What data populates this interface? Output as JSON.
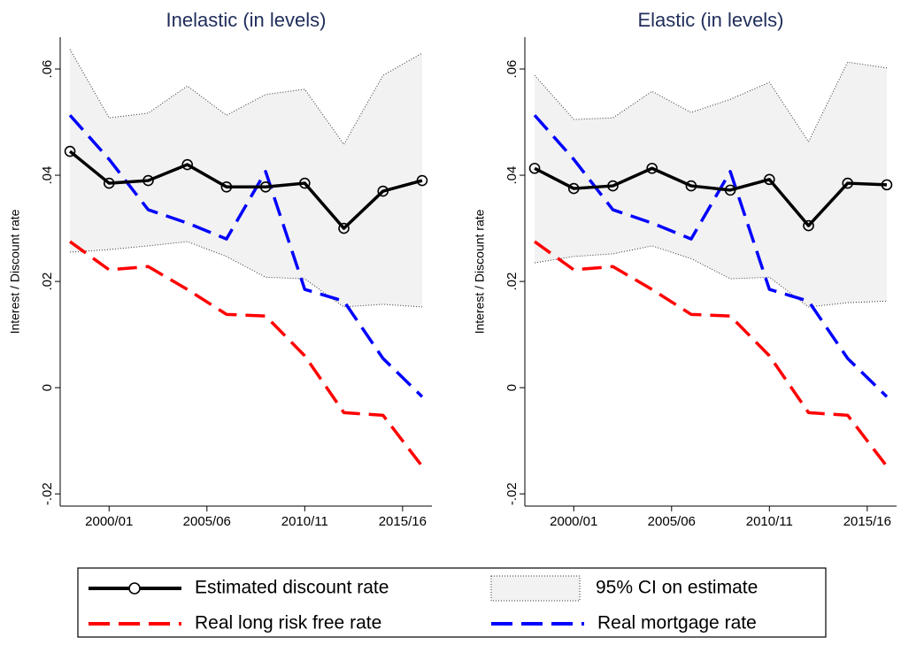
{
  "chart_data": [
    {
      "type": "line",
      "title": "Inelastic (in levels)",
      "y_label": "Interest / Discount rate",
      "x": [
        1998,
        2000,
        2002,
        2004,
        2006,
        2008,
        2010,
        2012,
        2014,
        2016
      ],
      "xlim": [
        1997.5,
        2016.5
      ],
      "xticks": [
        {
          "value": 2000,
          "label": "2000/01"
        },
        {
          "value": 2005,
          "label": "2005/06"
        },
        {
          "value": 2010,
          "label": "2010/11"
        },
        {
          "value": 2015,
          "label": "2015/16"
        }
      ],
      "ylim": [
        -0.0223,
        0.066
      ],
      "yticks": [
        {
          "value": -0.02,
          "label": "-.02"
        },
        0,
        {
          "value": 0.02,
          "label": ".02"
        },
        {
          "value": 0.04,
          "label": ".04"
        },
        {
          "value": 0.06,
          "label": ".06"
        }
      ],
      "series": [
        {
          "name": "Estimated discount rate",
          "color": "#000000",
          "values": [
            0.0445,
            0.0385,
            0.039,
            0.042,
            0.0378,
            0.0378,
            0.0385,
            0.03,
            0.037,
            0.039
          ]
        },
        {
          "name": "95% CI on estimate",
          "color": "#f2f2f2",
          "lower": [
            0.0255,
            0.026,
            0.0267,
            0.0275,
            0.0247,
            0.0208,
            0.0205,
            0.0152,
            0.0157,
            0.0152
          ],
          "upper": [
            0.0637,
            0.0508,
            0.0517,
            0.0568,
            0.0513,
            0.0552,
            0.0562,
            0.0458,
            0.0588,
            0.063
          ]
        },
        {
          "name": "Real long risk free rate",
          "color": "#ff0000",
          "values": [
            0.0275,
            0.0222,
            0.0228,
            0.0185,
            0.0138,
            0.0135,
            0.006,
            -0.0047,
            -0.0052,
            -0.0148
          ]
        },
        {
          "name": "Real mortgage rate",
          "color": "#0000ff",
          "values": [
            0.0513,
            0.043,
            0.0335,
            0.031,
            0.028,
            0.0407,
            0.0185,
            0.0163,
            0.0055,
            -0.0017
          ]
        }
      ]
    },
    {
      "type": "line",
      "title": "Elastic (in levels)",
      "y_label": "Interest / Discount rate",
      "x": [
        1998,
        2000,
        2002,
        2004,
        2006,
        2008,
        2010,
        2012,
        2014,
        2016
      ],
      "xlim": [
        1997.5,
        2016.5
      ],
      "xticks": [
        {
          "value": 2000,
          "label": "2000/01"
        },
        {
          "value": 2005,
          "label": "2005/06"
        },
        {
          "value": 2010,
          "label": "2010/11"
        },
        {
          "value": 2015,
          "label": "2015/16"
        }
      ],
      "ylim": [
        -0.0223,
        0.066
      ],
      "yticks": [
        {
          "value": -0.02,
          "label": "-.02"
        },
        0,
        {
          "value": 0.02,
          "label": ".02"
        },
        {
          "value": 0.04,
          "label": ".04"
        },
        {
          "value": 0.06,
          "label": ".06"
        }
      ],
      "series": [
        {
          "color": "#000000",
          "values": [
            0.0413,
            0.0375,
            0.038,
            0.0413,
            0.038,
            0.0372,
            0.0392,
            0.0305,
            0.0385,
            0.0382
          ]
        },
        {
          "color": "#f2f2f2",
          "lower": [
            0.0235,
            0.0247,
            0.0252,
            0.0267,
            0.0243,
            0.0205,
            0.0208,
            0.0152,
            0.016,
            0.0163
          ],
          "upper": [
            0.0588,
            0.0505,
            0.0508,
            0.0558,
            0.0518,
            0.0543,
            0.0575,
            0.0463,
            0.0613,
            0.0602
          ]
        },
        {
          "color": "#ff0000",
          "values": [
            0.0275,
            0.0222,
            0.0228,
            0.0185,
            0.0138,
            0.0135,
            0.006,
            -0.0047,
            -0.0052,
            -0.0148
          ]
        },
        {
          "color": "#0000ff",
          "values": [
            0.0513,
            0.043,
            0.0335,
            0.031,
            0.028,
            0.0407,
            0.0185,
            0.0163,
            0.0055,
            -0.0017
          ]
        }
      ]
    }
  ]
}
